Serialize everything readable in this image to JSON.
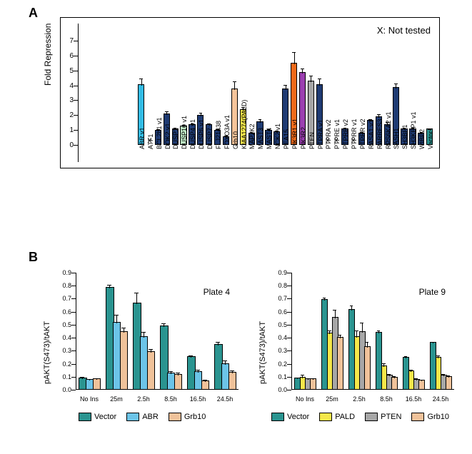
{
  "labels": {
    "A": "A",
    "B": "B"
  },
  "panelA": {
    "type": "bar",
    "ylabel": "Fold Repression",
    "note": "X: Not tested",
    "ylim": [
      0,
      7
    ],
    "ytick_step": 1,
    "nt_line_y": 1,
    "background": "#ffffff",
    "border": "#000000",
    "default_color": "#1f3b73",
    "bars": [
      {
        "label": "ABR v1",
        "value": 4.0,
        "err": 0.4,
        "color": "#33bde6"
      },
      {
        "label": "ATF1",
        "value": null,
        "x": true
      },
      {
        "label": "BCL2L1 v1",
        "value": 0.9,
        "err": 0.1
      },
      {
        "label": "DOK2 v1",
        "value": 2.0,
        "err": 0.2
      },
      {
        "label": "DUSP1",
        "value": 1.0,
        "err": 0.1
      },
      {
        "label": "DUSP10 v1",
        "value": 1.2,
        "err": 0.1,
        "color": "#bfe9c6"
      },
      {
        "label": "DUSP4 v1",
        "value": 1.3,
        "err": 0.1
      },
      {
        "label": "DUSP6 v1",
        "value": 1.9,
        "err": 0.2
      },
      {
        "label": "DUSP7",
        "value": 1.3,
        "err": 0.1
      },
      {
        "label": "FLJ21438",
        "value": 0.9,
        "err": 0.1
      },
      {
        "label": "FOXO3A v1",
        "value": 0.5,
        "err": 0.1
      },
      {
        "label": "Grb10",
        "value": 3.7,
        "err": 0.5,
        "color": "#f5c49a"
      },
      {
        "label": "KIAA1274(PALD)",
        "value": 2.3,
        "err": 0.2,
        "color": "#f5e74a"
      },
      {
        "label": "MAP2K2",
        "value": 0.7,
        "err": 0.1
      },
      {
        "label": "MAST3",
        "value": 1.5,
        "err": 0.2
      },
      {
        "label": "MAST4",
        "value": 0.9,
        "err": 0.1
      },
      {
        "label": "NCK2 v1",
        "value": 0.8,
        "err": 0.1
      },
      {
        "label": "PEA15",
        "value": 3.7,
        "err": 0.3
      },
      {
        "label": "PIK3R1 v1",
        "value": 5.4,
        "err": 0.8,
        "color": "#f06a1a"
      },
      {
        "label": "PIK3R2",
        "value": 4.8,
        "err": 0.3,
        "color": "#9b3fb0"
      },
      {
        "label": "PTEN",
        "value": 4.2,
        "err": 0.4,
        "color": "#a7a7a7"
      },
      {
        "label": "PTPRA v1",
        "value": 4.0,
        "err": 0.4
      },
      {
        "label": "PTPRA v2",
        "value": null,
        "x": true
      },
      {
        "label": "PTPRE v1",
        "value": null,
        "x": true
      },
      {
        "label": "PTPRE v2",
        "value": 1.0,
        "err": 0.1
      },
      {
        "label": "PTPRR v1",
        "value": null,
        "x": true
      },
      {
        "label": "PTPRR v2",
        "value": 0.7,
        "err": 0.1
      },
      {
        "label": "RASA1 v1",
        "value": 1.6,
        "err": 0.1
      },
      {
        "label": "RARRES3",
        "value": 1.8,
        "err": 0.2
      },
      {
        "label": "RPS6KA2 v1",
        "value": 1.3,
        "err": 0.2
      },
      {
        "label": "SASH1",
        "value": 3.8,
        "err": 0.3
      },
      {
        "label": "SH3BP1",
        "value": 1.0,
        "err": 0.1
      },
      {
        "label": "SH3KBP1 v1",
        "value": 1.0,
        "err": 0.1
      },
      {
        "label": "WIBP2",
        "value": 0.7,
        "err": 0.1
      },
      {
        "label": "Vector",
        "value": 1.0,
        "err": 0.03,
        "color": "#2a9490"
      }
    ]
  },
  "panelB": {
    "type": "grouped-bar",
    "ylabel": "pAKT(S473)/tAKT",
    "ylim": [
      0,
      0.9
    ],
    "ytick_step": 0.1,
    "categories": [
      "No Ins",
      "25m",
      "2.5h",
      "8.5h",
      "16.5h",
      "24.5h"
    ],
    "subplots": [
      {
        "title": "Plate 4",
        "series": [
          {
            "name": "Vector",
            "color": "#2a9490"
          },
          {
            "name": "ABR",
            "color": "#6cc4e8"
          },
          {
            "name": "Grb10",
            "color": "#f0c29a"
          }
        ],
        "values": [
          [
            0.085,
            0.07,
            0.075
          ],
          [
            0.78,
            0.51,
            0.44
          ],
          [
            0.66,
            0.4,
            0.285
          ],
          [
            0.485,
            0.12,
            0.11
          ],
          [
            0.245,
            0.13,
            0.06
          ],
          [
            0.34,
            0.19,
            0.125
          ]
        ],
        "errors": [
          [
            0.01,
            0.005,
            0.005
          ],
          [
            0.02,
            0.06,
            0.03
          ],
          [
            0.08,
            0.04,
            0.02
          ],
          [
            0.02,
            0.02,
            0.015
          ],
          [
            0.015,
            0.02,
            0.01
          ],
          [
            0.02,
            0.03,
            0.02
          ]
        ]
      },
      {
        "title": "Plate 9",
        "series": [
          {
            "name": "Vector",
            "color": "#2a9490"
          },
          {
            "name": "PALD",
            "color": "#f5e74a"
          },
          {
            "name": "PTEN",
            "color": "#a7a7a7"
          },
          {
            "name": "Grb10",
            "color": "#f0c29a"
          }
        ],
        "values": [
          [
            0.085,
            0.09,
            0.075,
            0.075
          ],
          [
            0.685,
            0.43,
            0.55,
            0.395
          ],
          [
            0.61,
            0.4,
            0.44,
            0.325
          ],
          [
            0.435,
            0.175,
            0.105,
            0.09
          ],
          [
            0.24,
            0.135,
            0.07,
            0.065
          ],
          [
            0.355,
            0.24,
            0.105,
            0.095
          ]
        ],
        "errors": [
          [
            0.005,
            0.02,
            0.005,
            0.005
          ],
          [
            0.015,
            0.02,
            0.06,
            0.02
          ],
          [
            0.03,
            0.05,
            0.07,
            0.04
          ],
          [
            0.015,
            0.02,
            0.01,
            0.01
          ],
          [
            0.01,
            0.015,
            0.01,
            0.005
          ],
          [
            0.01,
            0.02,
            0.01,
            0.01
          ]
        ]
      }
    ],
    "legend_rows": [
      [
        {
          "series": 0,
          "sub": 0
        },
        {
          "series": 1,
          "sub": 0
        },
        {
          "series": 2,
          "sub": 0
        }
      ],
      [
        {
          "series": 0,
          "sub": 1
        },
        {
          "series": 1,
          "sub": 1
        },
        {
          "series": 2,
          "sub": 1
        },
        {
          "series": 3,
          "sub": 1
        }
      ]
    ]
  }
}
